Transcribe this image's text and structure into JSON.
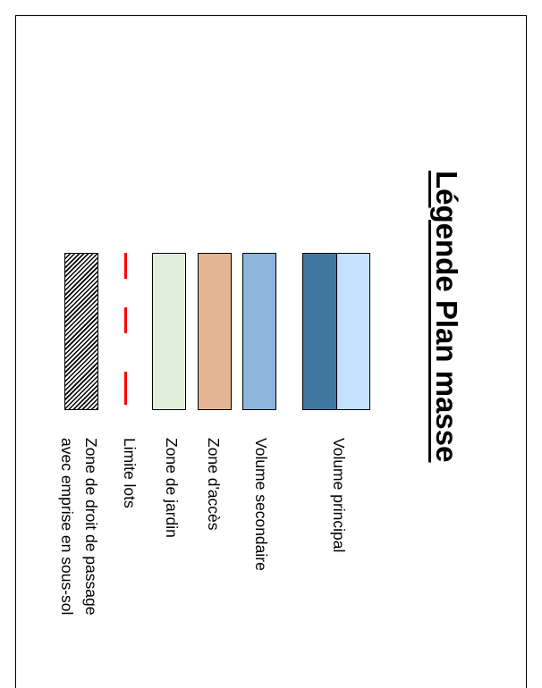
{
  "title": "Légende Plan masse",
  "legend": [
    {
      "label": "Volume principal",
      "colors": [
        "#c3e2fd",
        "#3f77a1"
      ]
    },
    {
      "label": "Volume secondaire",
      "color": "#8db5dc"
    },
    {
      "label": "Zone d'accès",
      "color": "#e4b593"
    },
    {
      "label": "Zone de jardin",
      "color": "#e1eedb"
    },
    {
      "label": "Limite lots",
      "color": "#ff0000",
      "style": "dashed-line"
    },
    {
      "label": [
        "Zone de droit de passage",
        "avec emprise en sous-sol"
      ],
      "style": "hatched"
    }
  ]
}
